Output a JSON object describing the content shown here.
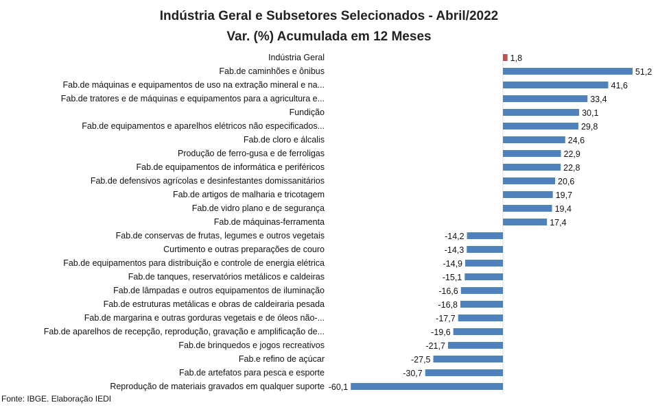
{
  "chart_data": {
    "type": "bar",
    "orientation": "horizontal",
    "title": "Indústria Geral e Subsetores Selecionados - Abril/2022",
    "subtitle": "Var. (%) Acumulada em 12 Meses",
    "categories": [
      "Indústria Geral",
      "Fab.de caminhões e ônibus",
      "Fab.de máquinas e equipamentos de uso na extração mineral e na...",
      "Fab.de tratores e de máquinas e equipamentos para a agricultura e...",
      "Fundição",
      "Fab.de equipamentos e aparelhos elétricos não especificados...",
      "Fab.de cloro e álcalis",
      "Produção de ferro-gusa e de ferroligas",
      "Fab.de equipamentos de informática e periféricos",
      "Fab.de defensivos agrícolas e desinfestantes domissanitários",
      "Fab.de artigos de malharia e tricotagem",
      "Fab.de vidro plano e de segurança",
      "Fab.de máquinas-ferramenta",
      "Fab.de conservas de frutas, legumes e outros vegetais",
      "Curtimento e outras preparações de couro",
      "Fab.de equipamentos para distribuição e controle de energia elétrica",
      "Fab.de tanques, reservatórios metálicos e caldeiras",
      "Fab.de lâmpadas e outros equipamentos de iluminação",
      "Fab.de estruturas metálicas e obras de caldeiraria pesada",
      "Fab.de margarina e outras gorduras vegetais e de óleos não-...",
      "Fab.de aparelhos de recepção, reprodução, gravação e amplificação de...",
      "Fab.de brinquedos e jogos recreativos",
      "Fab.e refino de açúcar",
      "Fab.de artefatos para pesca e esporte",
      "Reprodução de materiais gravados em qualquer suporte"
    ],
    "values": [
      1.8,
      51.2,
      41.6,
      33.4,
      30.1,
      29.8,
      24.6,
      22.9,
      22.8,
      20.6,
      19.7,
      19.4,
      17.4,
      -14.2,
      -14.3,
      -14.9,
      -15.1,
      -16.6,
      -16.8,
      -17.7,
      -19.6,
      -21.7,
      -27.5,
      -30.7,
      -60.1
    ],
    "data_labels": [
      "1,8",
      "51,2",
      "41,6",
      "33,4",
      "30,1",
      "29,8",
      "24,6",
      "22,9",
      "22,8",
      "20,6",
      "19,7",
      "19,4",
      "17,4",
      "-14,2",
      "-14,3",
      "-14,9",
      "-15,1",
      "-16,6",
      "-16,8",
      "-17,7",
      "-19,6",
      "-21,7",
      "-27,5",
      "-30,7",
      "-60,1"
    ],
    "colors": {
      "highlight": "#C0504D",
      "default": "#4F81BD"
    },
    "xlim": [
      -60.1,
      51.2
    ],
    "grid": false,
    "legend": "none",
    "source": "Fonte: IBGE. Elaboração IEDI"
  }
}
